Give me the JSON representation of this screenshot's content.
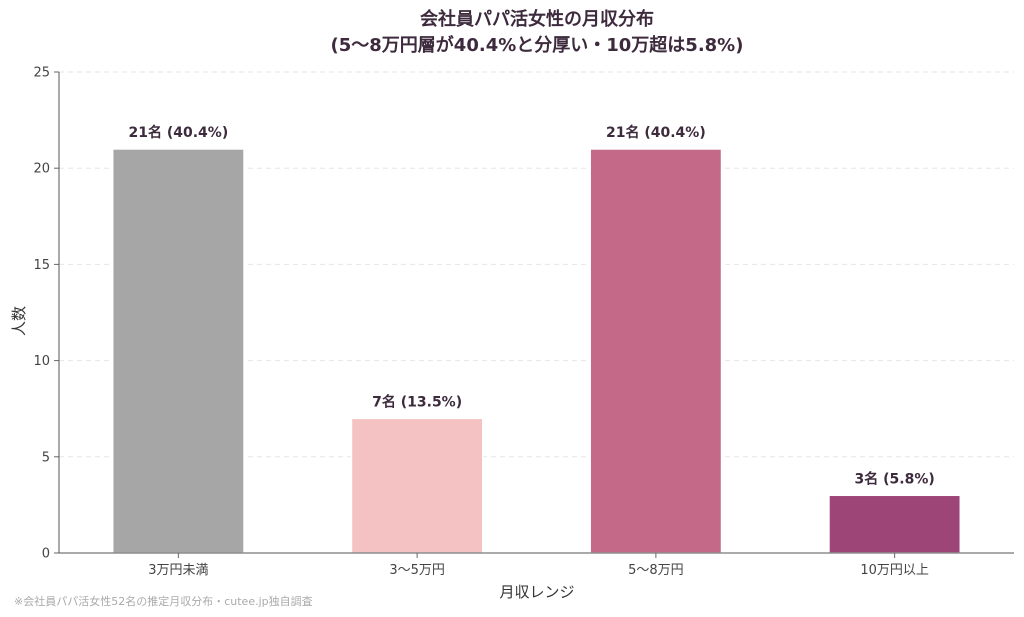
{
  "chart_data": {
    "type": "bar",
    "title_line1": "会社員パパ活女性の月収分布",
    "title_line2": "(5〜8万円層が40.4%と分厚い・10万超は5.8%)",
    "xlabel": "月収レンジ",
    "ylabel": "人数",
    "ylim": [
      0,
      25
    ],
    "yticks": [
      0,
      5,
      10,
      15,
      20,
      25
    ],
    "grid": true,
    "categories": [
      "3万円未満",
      "3〜5万円",
      "5〜8万円",
      "10万円以上"
    ],
    "values": [
      21,
      7,
      21,
      3
    ],
    "value_labels": [
      "21名 (40.4%)",
      "7名 (13.5%)",
      "21名 (40.4%)",
      "3名 (5.8%)"
    ],
    "colors": [
      "#a6a6a6",
      "#f4c2c2",
      "#c46a88",
      "#9e4578"
    ]
  },
  "footnote": "※会社員パパ活女性52名の推定月収分布・cutee.jp独自調査"
}
